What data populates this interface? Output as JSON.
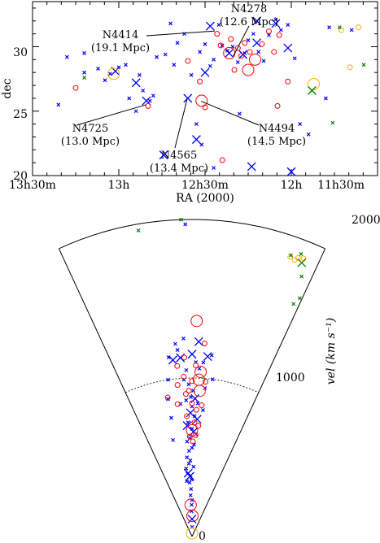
{
  "chart_data": [
    {
      "type": "scatter",
      "title": "",
      "xlabel": "RA (2000)",
      "ylabel": "dec",
      "x_ticks_hours": [
        13.5,
        13.0,
        12.5,
        12.0,
        11.5
      ],
      "x_tick_labels": [
        "13h30m",
        "13h",
        "12h30m",
        "12h",
        "11h30m"
      ],
      "xlim_hours": [
        13.5,
        11.5
      ],
      "y_ticks": [
        20,
        25,
        30
      ],
      "ylim": [
        20,
        33.5
      ],
      "annotations": [
        {
          "name": "N4278",
          "dist": "(12.6 Mpc)",
          "ra": 12.336,
          "dec": 29.28
        },
        {
          "name": "N4414",
          "dist": "(19.1 Mpc)",
          "ra": 12.443,
          "dec": 31.22
        },
        {
          "name": "N4725",
          "dist": "(13.0 Mpc)",
          "ra": 12.842,
          "dec": 25.5
        },
        {
          "name": "N4565",
          "dist": "(13.4 Mpc)",
          "ra": 12.603,
          "dec": 25.99
        },
        {
          "name": "N4494",
          "dist": "(14.5 Mpc)",
          "ra": 12.523,
          "dec": 25.77
        }
      ],
      "series": [
        {
          "marker": "x",
          "color": "#0000ff",
          "points_small": [
            [
              13.35,
              25.5
            ],
            [
              13.3,
              29.2
            ],
            [
              13.2,
              28.0
            ],
            [
              13.12,
              28.3
            ],
            [
              13.08,
              27.4
            ],
            [
              13.05,
              27.9
            ],
            [
              13.0,
              28.4
            ],
            [
              12.96,
              28.6
            ],
            [
              12.94,
              26.0
            ],
            [
              12.88,
              27.8
            ],
            [
              12.86,
              26.6
            ],
            [
              12.82,
              25.8
            ],
            [
              12.8,
              26.2
            ],
            [
              12.78,
              29.2
            ],
            [
              12.73,
              29.4
            ],
            [
              12.68,
              28.6
            ],
            [
              12.66,
              30.3
            ],
            [
              12.62,
              31.0
            ],
            [
              12.58,
              27.8
            ],
            [
              12.55,
              24.0
            ],
            [
              12.53,
              29.6
            ],
            [
              12.5,
              30.2
            ],
            [
              12.47,
              28.5
            ],
            [
              12.45,
              29.0
            ],
            [
              12.42,
              31.7
            ],
            [
              12.4,
              30.1
            ],
            [
              12.37,
              29.7
            ],
            [
              12.34,
              30.0
            ],
            [
              12.31,
              28.8
            ],
            [
              12.27,
              29.5
            ],
            [
              12.25,
              30.5
            ],
            [
              12.22,
              31.0
            ],
            [
              12.19,
              29.6
            ],
            [
              12.16,
              28.9
            ],
            [
              12.13,
              30.9
            ],
            [
              12.09,
              32.1
            ],
            [
              12.06,
              31.3
            ],
            [
              12.02,
              31.7
            ],
            [
              11.98,
              29.1
            ],
            [
              11.95,
              24.0
            ],
            [
              11.9,
              23.2
            ],
            [
              11.8,
              26.0
            ],
            [
              11.65,
              31.3
            ],
            [
              12.52,
              22.4
            ],
            [
              12.45,
              20.6
            ],
            [
              12.3,
              24.8
            ],
            [
              11.78,
              31.5
            ],
            [
              12.7,
              31.8
            ],
            [
              12.9,
              25.0
            ],
            [
              13.2,
              29.5
            ]
          ],
          "points_large": [
            [
              13.02,
              28.1
            ],
            [
              12.84,
              25.8
            ],
            [
              12.9,
              27.2
            ],
            [
              12.6,
              26.0
            ],
            [
              12.5,
              28.0
            ],
            [
              12.36,
              29.5
            ],
            [
              12.2,
              30.3
            ],
            [
              12.09,
              31.8
            ],
            [
              12.2,
              32.0
            ],
            [
              12.28,
              29.4
            ],
            [
              12.47,
              31.6
            ],
            [
              12.74,
              21.6
            ],
            [
              12.55,
              22.8
            ],
            [
              12.23,
              20.7
            ],
            [
              12.0,
              20.3
            ],
            [
              12.02,
              29.9
            ]
          ]
        },
        {
          "marker": "circle",
          "color": "#ff0000",
          "points": [
            [
              13.25,
              26.8
            ],
            [
              12.83,
              25.4
            ],
            [
              12.6,
              28.9
            ],
            [
              12.53,
              27.3
            ],
            [
              12.43,
              31.0
            ],
            [
              12.41,
              30.1
            ],
            [
              12.36,
              29.5
            ],
            [
              12.35,
              30.6
            ],
            [
              12.33,
              28.2
            ],
            [
              12.31,
              29.9
            ],
            [
              12.29,
              29.3
            ],
            [
              12.27,
              30.3
            ],
            [
              12.24,
              29.6
            ],
            [
              12.21,
              29.0
            ],
            [
              12.17,
              30.2
            ],
            [
              12.13,
              31.2
            ],
            [
              12.1,
              29.6
            ],
            [
              12.07,
              30.9
            ],
            [
              12.02,
              27.3
            ],
            [
              12.5,
              25.3
            ],
            [
              12.4,
              21.2
            ],
            [
              12.08,
              25.4
            ],
            [
              12.25,
              28.2
            ],
            [
              12.52,
              25.8
            ]
          ],
          "sizes": [
            1,
            1,
            1,
            1,
            1,
            1,
            2,
            1,
            1,
            1,
            1,
            1,
            1,
            2,
            1,
            1,
            1,
            1,
            1,
            1,
            1,
            1,
            2,
            2
          ]
        },
        {
          "marker": "circle",
          "color": "#ffb000",
          "points": [
            [
              13.03,
              27.9
            ],
            [
              11.87,
              27.1
            ],
            [
              11.71,
              31.3
            ],
            [
              11.61,
              31.5
            ],
            [
              11.66,
              28.4
            ]
          ],
          "sizes": [
            2,
            2,
            1,
            1,
            1
          ]
        },
        {
          "marker": "x",
          "color": "#008000",
          "points_small": [
            [
              13.2,
              27.6
            ],
            [
              11.88,
              26.6
            ],
            [
              11.72,
              31.5
            ],
            [
              11.58,
              28.6
            ],
            [
              11.76,
              24.1
            ]
          ],
          "points_large": [
            [
              11.88,
              26.6
            ]
          ]
        }
      ]
    },
    {
      "type": "scatter",
      "subtype": "cone_diagram",
      "title": "",
      "radial_label": "vel (km s⁻¹)",
      "radial_ticks": [
        0,
        1000,
        2000
      ],
      "radial_tick_labels": [
        "0",
        "1000",
        "2000"
      ],
      "vlim": [
        0,
        2000
      ],
      "angle_range_hours": [
        13.5,
        11.5
      ],
      "series": [
        {
          "marker": "x",
          "color": "#0000ff"
        },
        {
          "marker": "circle",
          "color": "#ff0000"
        },
        {
          "marker": "circle",
          "color": "#ffb000"
        },
        {
          "marker": "x",
          "color": "#008000"
        }
      ]
    }
  ]
}
